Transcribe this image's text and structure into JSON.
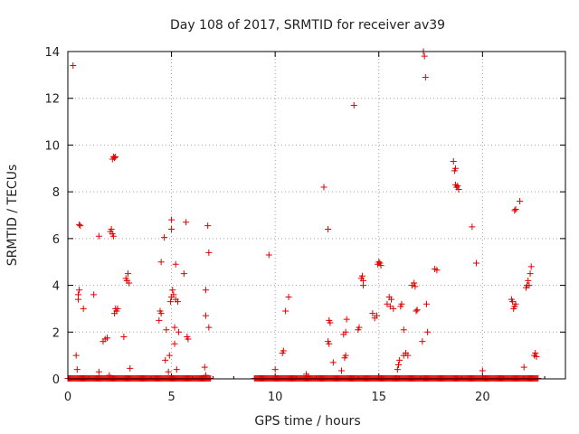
{
  "chart_data": {
    "type": "scatter",
    "title": "Day 108 of 2017, SRMTID for receiver av39",
    "xlabel": "GPS time / hours",
    "ylabel": "SRMTID / TECUs",
    "xlim": [
      0,
      24
    ],
    "ylim": [
      0,
      14
    ],
    "xticks": [
      0,
      5,
      10,
      15,
      20
    ],
    "xtick_labels": [
      "0",
      "5",
      "10",
      "15",
      "20"
    ],
    "yticks": [
      0,
      2,
      4,
      6,
      8,
      10,
      12,
      14
    ],
    "ytick_labels": [
      "0",
      "2",
      "4",
      "6",
      "8",
      "10",
      "12",
      "14"
    ],
    "grid": true,
    "marker": "+",
    "colors": {
      "series": "#e00000",
      "grid": "#a0a0a0",
      "axis": "#000000"
    },
    "baseline_segments": [
      {
        "x_start": 0.0,
        "x_end": 6.9,
        "y": 0.02
      },
      {
        "x_start": 9.0,
        "x_end": 22.7,
        "y": 0.02
      }
    ],
    "series": [
      {
        "name": "SRMTID",
        "points": [
          [
            0.25,
            13.4
          ],
          [
            0.4,
            1.0
          ],
          [
            0.45,
            0.4
          ],
          [
            0.5,
            3.4
          ],
          [
            0.5,
            3.6
          ],
          [
            0.55,
            3.8
          ],
          [
            0.55,
            6.6
          ],
          [
            0.6,
            6.55
          ],
          [
            0.75,
            3.0
          ],
          [
            1.25,
            3.6
          ],
          [
            1.5,
            0.3
          ],
          [
            1.5,
            6.1
          ],
          [
            1.7,
            1.6
          ],
          [
            1.8,
            1.7
          ],
          [
            1.9,
            1.75
          ],
          [
            2.0,
            0.15
          ],
          [
            2.05,
            6.3
          ],
          [
            2.1,
            6.4
          ],
          [
            2.15,
            6.2
          ],
          [
            2.2,
            6.1
          ],
          [
            2.15,
            9.4
          ],
          [
            2.2,
            9.5
          ],
          [
            2.25,
            9.45
          ],
          [
            2.3,
            9.5
          ],
          [
            2.25,
            2.8
          ],
          [
            2.3,
            3.0
          ],
          [
            2.35,
            2.9
          ],
          [
            2.4,
            3.0
          ],
          [
            2.7,
            1.8
          ],
          [
            2.8,
            4.3
          ],
          [
            2.85,
            4.2
          ],
          [
            2.9,
            4.5
          ],
          [
            2.95,
            4.1
          ],
          [
            3.0,
            0.45
          ],
          [
            4.4,
            2.5
          ],
          [
            4.45,
            2.9
          ],
          [
            4.5,
            2.8
          ],
          [
            4.5,
            5.0
          ],
          [
            4.65,
            6.05
          ],
          [
            4.7,
            0.8
          ],
          [
            4.75,
            2.1
          ],
          [
            4.85,
            0.3
          ],
          [
            4.9,
            1.0
          ],
          [
            4.95,
            3.3
          ],
          [
            5.0,
            3.5
          ],
          [
            5.0,
            6.4
          ],
          [
            5.0,
            6.8
          ],
          [
            5.05,
            3.8
          ],
          [
            5.1,
            3.6
          ],
          [
            5.15,
            1.5
          ],
          [
            5.15,
            2.2
          ],
          [
            5.2,
            3.4
          ],
          [
            5.2,
            4.9
          ],
          [
            5.25,
            0.4
          ],
          [
            5.3,
            3.3
          ],
          [
            5.35,
            2.0
          ],
          [
            5.6,
            4.5
          ],
          [
            5.7,
            6.7
          ],
          [
            5.75,
            1.8
          ],
          [
            5.8,
            1.7
          ],
          [
            6.6,
            0.5
          ],
          [
            6.65,
            0.15
          ],
          [
            6.65,
            3.8
          ],
          [
            6.65,
            2.7
          ],
          [
            6.75,
            6.55
          ],
          [
            6.8,
            5.4
          ],
          [
            6.8,
            2.2
          ],
          [
            9.7,
            5.3
          ],
          [
            10.0,
            0.4
          ],
          [
            10.35,
            1.1
          ],
          [
            10.4,
            1.2
          ],
          [
            10.5,
            2.9
          ],
          [
            10.65,
            3.5
          ],
          [
            11.5,
            0.2
          ],
          [
            11.6,
            0.1
          ],
          [
            12.35,
            8.2
          ],
          [
            12.55,
            6.4
          ],
          [
            12.55,
            1.6
          ],
          [
            12.6,
            1.5
          ],
          [
            12.6,
            2.5
          ],
          [
            12.65,
            2.4
          ],
          [
            12.8,
            0.7
          ],
          [
            13.2,
            0.35
          ],
          [
            13.3,
            1.9
          ],
          [
            13.35,
            0.9
          ],
          [
            13.4,
            1.0
          ],
          [
            13.4,
            2.0
          ],
          [
            13.45,
            2.55
          ],
          [
            13.8,
            11.7
          ],
          [
            14.0,
            2.1
          ],
          [
            14.05,
            2.2
          ],
          [
            14.15,
            4.3
          ],
          [
            14.2,
            4.4
          ],
          [
            14.25,
            4.2
          ],
          [
            14.25,
            4.0
          ],
          [
            14.7,
            2.8
          ],
          [
            14.8,
            2.6
          ],
          [
            14.9,
            2.7
          ],
          [
            14.95,
            4.9
          ],
          [
            15.0,
            5.0
          ],
          [
            15.05,
            4.95
          ],
          [
            15.1,
            4.85
          ],
          [
            15.4,
            3.2
          ],
          [
            15.5,
            3.5
          ],
          [
            15.55,
            3.1
          ],
          [
            15.6,
            3.4
          ],
          [
            15.7,
            3.0
          ],
          [
            15.9,
            0.4
          ],
          [
            15.95,
            0.6
          ],
          [
            16.0,
            0.8
          ],
          [
            16.05,
            3.1
          ],
          [
            16.1,
            3.2
          ],
          [
            16.2,
            2.1
          ],
          [
            16.2,
            1.0
          ],
          [
            16.3,
            1.1
          ],
          [
            16.4,
            1.0
          ],
          [
            16.6,
            4.0
          ],
          [
            16.7,
            4.1
          ],
          [
            16.75,
            3.95
          ],
          [
            16.8,
            2.9
          ],
          [
            16.85,
            2.95
          ],
          [
            17.1,
            1.6
          ],
          [
            17.15,
            14.0
          ],
          [
            17.2,
            13.8
          ],
          [
            17.25,
            12.9
          ],
          [
            17.3,
            3.2
          ],
          [
            17.35,
            2.0
          ],
          [
            17.7,
            4.7
          ],
          [
            17.8,
            4.65
          ],
          [
            18.6,
            9.3
          ],
          [
            18.65,
            8.9
          ],
          [
            18.7,
            9.0
          ],
          [
            18.7,
            8.3
          ],
          [
            18.75,
            8.2
          ],
          [
            18.8,
            8.25
          ],
          [
            18.85,
            8.1
          ],
          [
            19.5,
            6.5
          ],
          [
            19.7,
            4.95
          ],
          [
            20.0,
            0.35
          ],
          [
            21.4,
            3.4
          ],
          [
            21.45,
            3.3
          ],
          [
            21.5,
            3.0
          ],
          [
            21.55,
            3.1
          ],
          [
            21.6,
            3.2
          ],
          [
            21.55,
            7.2
          ],
          [
            21.6,
            7.25
          ],
          [
            21.8,
            7.6
          ],
          [
            22.0,
            0.5
          ],
          [
            22.1,
            3.9
          ],
          [
            22.15,
            4.0
          ],
          [
            22.2,
            4.2
          ],
          [
            22.25,
            4.0
          ],
          [
            22.3,
            4.5
          ],
          [
            22.35,
            4.8
          ],
          [
            22.5,
            1.0
          ],
          [
            22.55,
            1.1
          ],
          [
            22.6,
            0.95
          ]
        ]
      }
    ]
  }
}
